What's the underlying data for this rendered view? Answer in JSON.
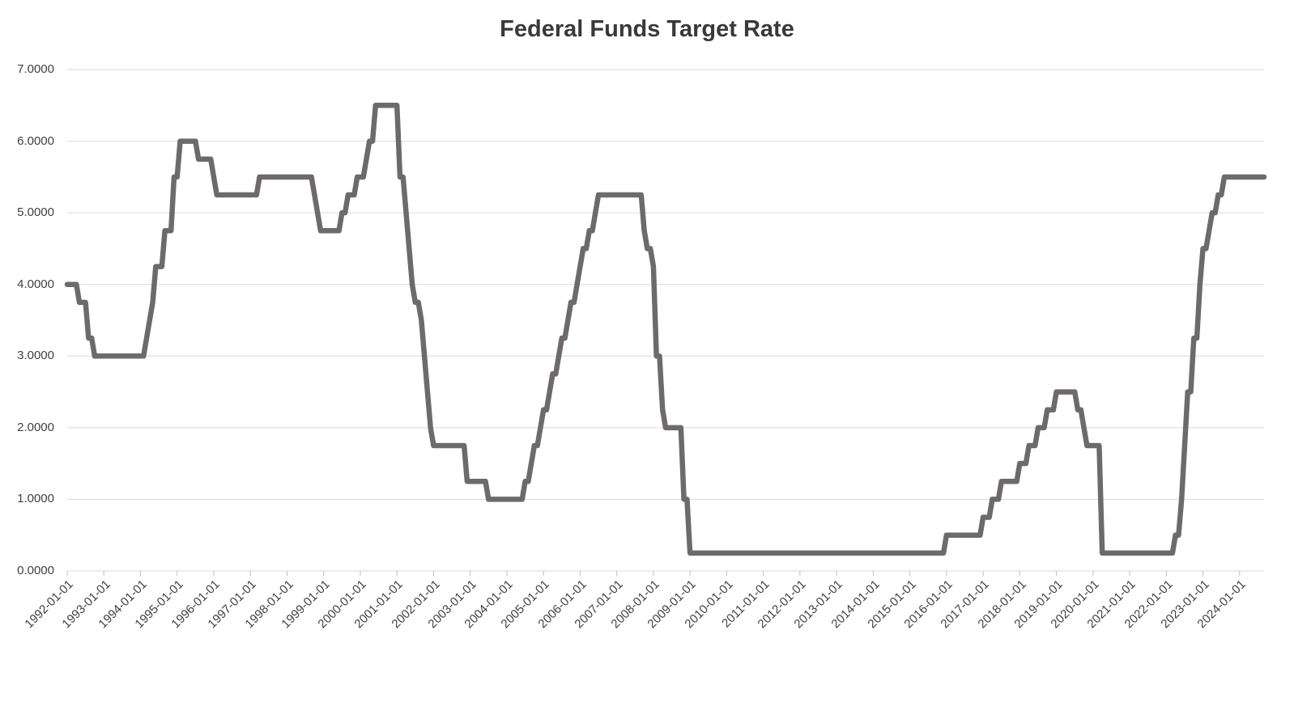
{
  "title": "Federal Funds Target Rate",
  "chart_data": {
    "type": "line",
    "title": "Federal Funds Target Rate",
    "series_name": "Federal Funds Target Rate (%)",
    "xlabel": "",
    "ylabel": "",
    "grid": true,
    "legend_position": "none",
    "ylim": [
      0,
      7
    ],
    "y_tick_labels": [
      "7.0000",
      "6.0000",
      "5.0000",
      "4.0000",
      "3.0000",
      "2.0000",
      "1.0000",
      "0.0000"
    ],
    "x_tick_labels": [
      "1992-01-01",
      "1993-01-01",
      "1994-01-01",
      "1995-01-01",
      "1996-01-01",
      "1997-01-01",
      "1998-01-01",
      "1999-01-01",
      "2000-01-01",
      "2001-01-01",
      "2002-01-01",
      "2003-01-01",
      "2004-01-01",
      "2005-01-01",
      "2006-01-01",
      "2007-01-01",
      "2008-01-01",
      "2009-01-01",
      "2010-01-01",
      "2011-01-01",
      "2012-01-01",
      "2013-01-01",
      "2014-01-01",
      "2015-01-01",
      "2016-01-01",
      "2017-01-01",
      "2018-01-01",
      "2019-01-01",
      "2020-01-01",
      "2021-01-01",
      "2022-01-01",
      "2023-01-01",
      "2024-01-01"
    ],
    "x_start_month": "1992-01",
    "x_end_month": "2024-09",
    "sampling": "monthly",
    "step_segments": [
      {
        "start": "1992-01",
        "end": "1992-04",
        "value": 4.0
      },
      {
        "start": "1992-05",
        "end": "1992-07",
        "value": 3.75
      },
      {
        "start": "1992-08",
        "end": "1992-09",
        "value": 3.25
      },
      {
        "start": "1992-10",
        "end": "1994-02",
        "value": 3.0
      },
      {
        "start": "1994-03",
        "end": "1994-03",
        "value": 3.25
      },
      {
        "start": "1994-04",
        "end": "1994-04",
        "value": 3.5
      },
      {
        "start": "1994-05",
        "end": "1994-05",
        "value": 3.75
      },
      {
        "start": "1994-06",
        "end": "1994-08",
        "value": 4.25
      },
      {
        "start": "1994-09",
        "end": "1994-11",
        "value": 4.75
      },
      {
        "start": "1994-12",
        "end": "1995-01",
        "value": 5.5
      },
      {
        "start": "1995-02",
        "end": "1995-07",
        "value": 6.0
      },
      {
        "start": "1995-08",
        "end": "1995-12",
        "value": 5.75
      },
      {
        "start": "1996-01",
        "end": "1996-01",
        "value": 5.5
      },
      {
        "start": "1996-02",
        "end": "1997-03",
        "value": 5.25
      },
      {
        "start": "1997-04",
        "end": "1998-09",
        "value": 5.5
      },
      {
        "start": "1998-10",
        "end": "1998-10",
        "value": 5.25
      },
      {
        "start": "1998-11",
        "end": "1998-11",
        "value": 5.0
      },
      {
        "start": "1998-12",
        "end": "1999-06",
        "value": 4.75
      },
      {
        "start": "1999-07",
        "end": "1999-08",
        "value": 5.0
      },
      {
        "start": "1999-09",
        "end": "1999-11",
        "value": 5.25
      },
      {
        "start": "1999-12",
        "end": "2000-02",
        "value": 5.5
      },
      {
        "start": "2000-03",
        "end": "2000-03",
        "value": 5.75
      },
      {
        "start": "2000-04",
        "end": "2000-05",
        "value": 6.0
      },
      {
        "start": "2000-06",
        "end": "2001-01",
        "value": 6.5
      },
      {
        "start": "2001-02",
        "end": "2001-03",
        "value": 5.5
      },
      {
        "start": "2001-04",
        "end": "2001-04",
        "value": 5.0
      },
      {
        "start": "2001-05",
        "end": "2001-05",
        "value": 4.5
      },
      {
        "start": "2001-06",
        "end": "2001-06",
        "value": 4.0
      },
      {
        "start": "2001-07",
        "end": "2001-08",
        "value": 3.75
      },
      {
        "start": "2001-09",
        "end": "2001-09",
        "value": 3.5
      },
      {
        "start": "2001-10",
        "end": "2001-10",
        "value": 3.0
      },
      {
        "start": "2001-11",
        "end": "2001-11",
        "value": 2.5
      },
      {
        "start": "2001-12",
        "end": "2001-12",
        "value": 2.0
      },
      {
        "start": "2002-01",
        "end": "2002-11",
        "value": 1.75
      },
      {
        "start": "2002-12",
        "end": "2003-06",
        "value": 1.25
      },
      {
        "start": "2003-07",
        "end": "2004-06",
        "value": 1.0
      },
      {
        "start": "2004-07",
        "end": "2004-08",
        "value": 1.25
      },
      {
        "start": "2004-09",
        "end": "2004-09",
        "value": 1.5
      },
      {
        "start": "2004-10",
        "end": "2004-11",
        "value": 1.75
      },
      {
        "start": "2004-12",
        "end": "2004-12",
        "value": 2.0
      },
      {
        "start": "2005-01",
        "end": "2005-02",
        "value": 2.25
      },
      {
        "start": "2005-03",
        "end": "2005-03",
        "value": 2.5
      },
      {
        "start": "2005-04",
        "end": "2005-05",
        "value": 2.75
      },
      {
        "start": "2005-06",
        "end": "2005-06",
        "value": 3.0
      },
      {
        "start": "2005-07",
        "end": "2005-08",
        "value": 3.25
      },
      {
        "start": "2005-09",
        "end": "2005-09",
        "value": 3.5
      },
      {
        "start": "2005-10",
        "end": "2005-11",
        "value": 3.75
      },
      {
        "start": "2005-12",
        "end": "2005-12",
        "value": 4.0
      },
      {
        "start": "2006-01",
        "end": "2006-01",
        "value": 4.25
      },
      {
        "start": "2006-02",
        "end": "2006-03",
        "value": 4.5
      },
      {
        "start": "2006-04",
        "end": "2006-05",
        "value": 4.75
      },
      {
        "start": "2006-06",
        "end": "2006-06",
        "value": 5.0
      },
      {
        "start": "2006-07",
        "end": "2007-09",
        "value": 5.25
      },
      {
        "start": "2007-10",
        "end": "2007-10",
        "value": 4.75
      },
      {
        "start": "2007-11",
        "end": "2007-12",
        "value": 4.5
      },
      {
        "start": "2008-01",
        "end": "2008-01",
        "value": 4.25
      },
      {
        "start": "2008-02",
        "end": "2008-03",
        "value": 3.0
      },
      {
        "start": "2008-04",
        "end": "2008-04",
        "value": 2.25
      },
      {
        "start": "2008-05",
        "end": "2008-10",
        "value": 2.0
      },
      {
        "start": "2008-11",
        "end": "2008-12",
        "value": 1.0
      },
      {
        "start": "2009-01",
        "end": "2015-12",
        "value": 0.25
      },
      {
        "start": "2016-01",
        "end": "2016-12",
        "value": 0.5
      },
      {
        "start": "2017-01",
        "end": "2017-03",
        "value": 0.75
      },
      {
        "start": "2017-04",
        "end": "2017-06",
        "value": 1.0
      },
      {
        "start": "2017-07",
        "end": "2017-12",
        "value": 1.25
      },
      {
        "start": "2018-01",
        "end": "2018-03",
        "value": 1.5
      },
      {
        "start": "2018-04",
        "end": "2018-06",
        "value": 1.75
      },
      {
        "start": "2018-07",
        "end": "2018-09",
        "value": 2.0
      },
      {
        "start": "2018-10",
        "end": "2018-12",
        "value": 2.25
      },
      {
        "start": "2019-01",
        "end": "2019-07",
        "value": 2.5
      },
      {
        "start": "2019-08",
        "end": "2019-09",
        "value": 2.25
      },
      {
        "start": "2019-10",
        "end": "2019-10",
        "value": 2.0
      },
      {
        "start": "2019-11",
        "end": "2020-03",
        "value": 1.75
      },
      {
        "start": "2020-04",
        "end": "2022-03",
        "value": 0.25
      },
      {
        "start": "2022-04",
        "end": "2022-05",
        "value": 0.5
      },
      {
        "start": "2022-06",
        "end": "2022-06",
        "value": 1.0
      },
      {
        "start": "2022-07",
        "end": "2022-07",
        "value": 1.75
      },
      {
        "start": "2022-08",
        "end": "2022-09",
        "value": 2.5
      },
      {
        "start": "2022-10",
        "end": "2022-11",
        "value": 3.25
      },
      {
        "start": "2022-12",
        "end": "2022-12",
        "value": 4.0
      },
      {
        "start": "2023-01",
        "end": "2023-02",
        "value": 4.5
      },
      {
        "start": "2023-03",
        "end": "2023-03",
        "value": 4.75
      },
      {
        "start": "2023-04",
        "end": "2023-05",
        "value": 5.0
      },
      {
        "start": "2023-06",
        "end": "2023-07",
        "value": 5.25
      },
      {
        "start": "2023-08",
        "end": "2024-09",
        "value": 5.5
      }
    ],
    "colors": {
      "line": "#6e6a6a",
      "gridline": "#d9d9d9",
      "axis_line": "#d9d9d9",
      "tick_mark": "#bfbfbf",
      "tick_label": "#404040",
      "title": "#393939",
      "background": "#ffffff"
    },
    "line_width": 6.5
  }
}
